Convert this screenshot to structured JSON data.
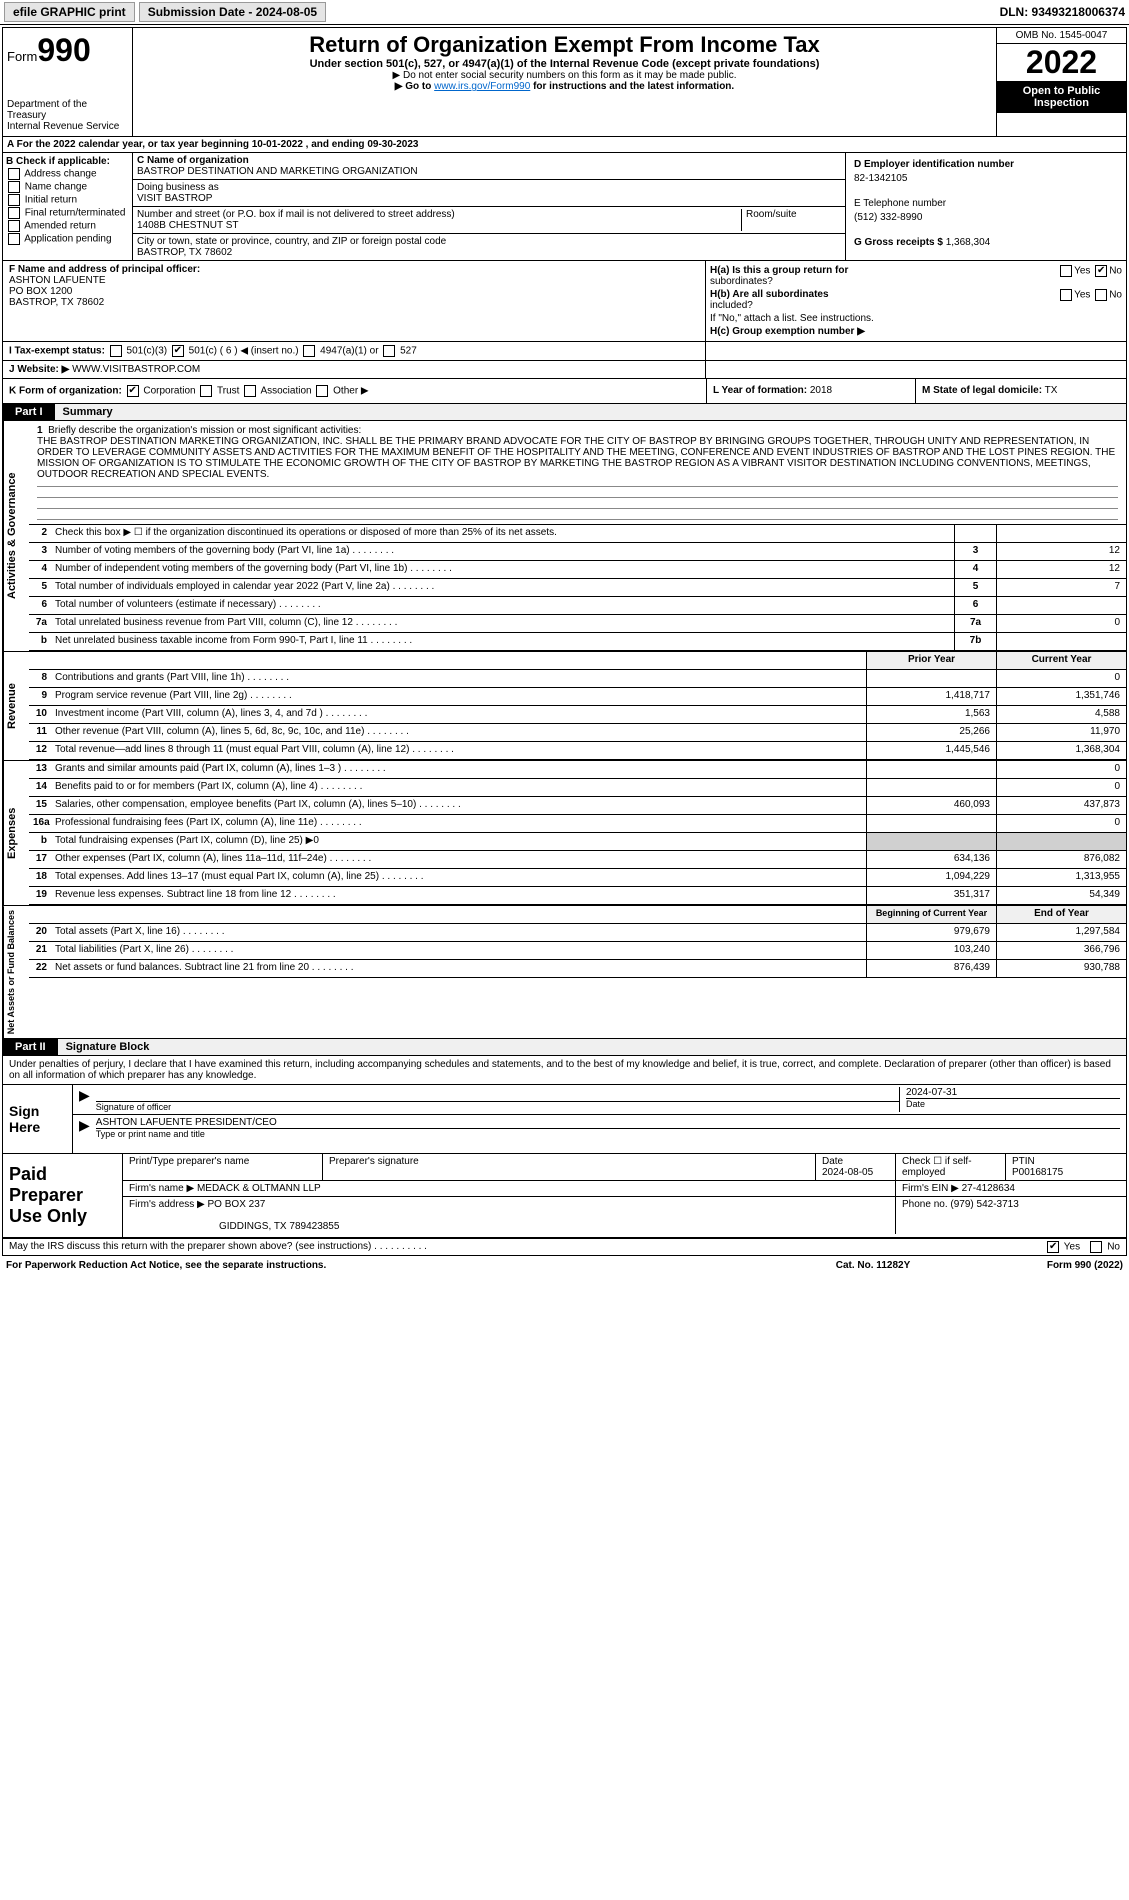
{
  "top": {
    "efile": "efile GRAPHIC print",
    "submission_label": "Submission Date - 2024-08-05",
    "dln": "DLN: 93493218006374"
  },
  "header": {
    "form_prefix": "Form",
    "form_num": "990",
    "dept": "Department of the Treasury",
    "irs": "Internal Revenue Service",
    "title": "Return of Organization Exempt From Income Tax",
    "sub1": "Under section 501(c), 527, or 4947(a)(1) of the Internal Revenue Code (except private foundations)",
    "sub2": "▶ Do not enter social security numbers on this form as it may be made public.",
    "sub3_pre": "▶ Go to ",
    "sub3_link": "www.irs.gov/Form990",
    "sub3_post": " for instructions and the latest information.",
    "omb": "OMB No. 1545-0047",
    "year": "2022",
    "inspect": "Open to Public Inspection"
  },
  "row_a": "A For the 2022 calendar year, or tax year beginning 10-01-2022  , and ending 09-30-2023",
  "col_b": {
    "hdr": "B Check if applicable:",
    "c1": "Address change",
    "c2": "Name change",
    "c3": "Initial return",
    "c4": "Final return/terminated",
    "c5": "Amended return",
    "c6": "Application pending"
  },
  "col_c": {
    "name_lbl": "C Name of organization",
    "name": "BASTROP DESTINATION AND MARKETING ORGANIZATION",
    "dba_lbl": "Doing business as",
    "dba": "VISIT BASTROP",
    "street_lbl": "Number and street (or P.O. box if mail is not delivered to street address)",
    "street": "1408B CHESTNUT ST",
    "room_lbl": "Room/suite",
    "city_lbl": "City or town, state or province, country, and ZIP or foreign postal code",
    "city": "BASTROP, TX  78602"
  },
  "col_d": {
    "ein_lbl": "D Employer identification number",
    "ein": "82-1342105",
    "phone_lbl": "E Telephone number",
    "phone": "(512) 332-8990",
    "gross_lbl": "G Gross receipts $",
    "gross": "1,368,304"
  },
  "col_f": {
    "lbl": "F  Name and address of principal officer:",
    "name": "ASHTON LAFUENTE",
    "addr1": "PO BOX 1200",
    "addr2": "BASTROP, TX  78602"
  },
  "col_h": {
    "h1a": "H(a)  Is this a group return for",
    "h1b": "subordinates?",
    "yes": "Yes",
    "no": "No",
    "h2a": "H(b)  Are all subordinates",
    "h2b": "included?",
    "h3": "If \"No,\" attach a list. See instructions.",
    "hc": "H(c)  Group exemption number ▶"
  },
  "row_i": {
    "lbl": "I  Tax-exempt status:",
    "c1": "501(c)(3)",
    "c2a": "501(c) ( 6 ) ◀ (insert no.)",
    "c3": "4947(a)(1) or",
    "c4": "527"
  },
  "row_j": {
    "lbl": "J  Website: ▶",
    "val": "WWW.VISITBASTROP.COM"
  },
  "row_k": {
    "lbl": "K Form of organization:",
    "c1": "Corporation",
    "c2": "Trust",
    "c3": "Association",
    "c4": "Other ▶",
    "l_lbl": "L Year of formation:",
    "l_val": "2018",
    "m_lbl": "M State of legal domicile:",
    "m_val": "TX"
  },
  "part1": {
    "num": "Part I",
    "title": "Summary"
  },
  "vside": {
    "gov": "Activities & Governance",
    "rev": "Revenue",
    "exp": "Expenses",
    "net": "Net Assets or Fund Balances"
  },
  "line1": {
    "num": "1",
    "lbl": "Briefly describe the organization's mission or most significant activities:",
    "text": "THE BASTROP DESTINATION MARKETING ORGANIZATION, INC. SHALL BE THE PRIMARY BRAND ADVOCATE FOR THE CITY OF BASTROP BY BRINGING GROUPS TOGETHER, THROUGH UNITY AND REPRESENTATION, IN ORDER TO LEVERAGE COMMUNITY ASSETS AND ACTIVITIES FOR THE MAXIMUM BENEFIT OF THE HOSPITALITY AND THE MEETING, CONFERENCE AND EVENT INDUSTRIES OF BASTROP AND THE LOST PINES REGION. THE MISSION OF ORGANIZATION IS TO STIMULATE THE ECONOMIC GROWTH OF THE CITY OF BASTROP BY MARKETING THE BASTROP REGION AS A VIBRANT VISITOR DESTINATION INCLUDING CONVENTIONS, MEETINGS, OUTDOOR RECREATION AND SPECIAL EVENTS."
  },
  "lines_gov": [
    {
      "n": "2",
      "l": "Check this box ▶ ☐  if the organization discontinued its operations or disposed of more than 25% of its net assets.",
      "b": "",
      "v": ""
    },
    {
      "n": "3",
      "l": "Number of voting members of the governing body (Part VI, line 1a)",
      "b": "3",
      "v": "12"
    },
    {
      "n": "4",
      "l": "Number of independent voting members of the governing body (Part VI, line 1b)",
      "b": "4",
      "v": "12"
    },
    {
      "n": "5",
      "l": "Total number of individuals employed in calendar year 2022 (Part V, line 2a)",
      "b": "5",
      "v": "7"
    },
    {
      "n": "6",
      "l": "Total number of volunteers (estimate if necessary)",
      "b": "6",
      "v": ""
    },
    {
      "n": "7a",
      "l": "Total unrelated business revenue from Part VIII, column (C), line 12",
      "b": "7a",
      "v": "0"
    },
    {
      "n": "b",
      "l": "Net unrelated business taxable income from Form 990-T, Part I, line 11",
      "b": "7b",
      "v": ""
    }
  ],
  "col_headers": {
    "prior": "Prior Year",
    "current": "Current Year"
  },
  "lines_rev": [
    {
      "n": "8",
      "l": "Contributions and grants (Part VIII, line 1h)",
      "p": "",
      "c": "0"
    },
    {
      "n": "9",
      "l": "Program service revenue (Part VIII, line 2g)",
      "p": "1,418,717",
      "c": "1,351,746"
    },
    {
      "n": "10",
      "l": "Investment income (Part VIII, column (A), lines 3, 4, and 7d )",
      "p": "1,563",
      "c": "4,588"
    },
    {
      "n": "11",
      "l": "Other revenue (Part VIII, column (A), lines 5, 6d, 8c, 9c, 10c, and 11e)",
      "p": "25,266",
      "c": "11,970"
    },
    {
      "n": "12",
      "l": "Total revenue—add lines 8 through 11 (must equal Part VIII, column (A), line 12)",
      "p": "1,445,546",
      "c": "1,368,304"
    }
  ],
  "lines_exp": [
    {
      "n": "13",
      "l": "Grants and similar amounts paid (Part IX, column (A), lines 1–3 )",
      "p": "",
      "c": "0"
    },
    {
      "n": "14",
      "l": "Benefits paid to or for members (Part IX, column (A), line 4)",
      "p": "",
      "c": "0"
    },
    {
      "n": "15",
      "l": "Salaries, other compensation, employee benefits (Part IX, column (A), lines 5–10)",
      "p": "460,093",
      "c": "437,873"
    },
    {
      "n": "16a",
      "l": "Professional fundraising fees (Part IX, column (A), line 11e)",
      "p": "",
      "c": "0"
    },
    {
      "n": "b",
      "l": "Total fundraising expenses (Part IX, column (D), line 25) ▶0",
      "p": "gray",
      "c": "gray"
    },
    {
      "n": "17",
      "l": "Other expenses (Part IX, column (A), lines 11a–11d, 11f–24e)",
      "p": "634,136",
      "c": "876,082"
    },
    {
      "n": "18",
      "l": "Total expenses. Add lines 13–17 (must equal Part IX, column (A), line 25)",
      "p": "1,094,229",
      "c": "1,313,955"
    },
    {
      "n": "19",
      "l": "Revenue less expenses. Subtract line 18 from line 12",
      "p": "351,317",
      "c": "54,349"
    }
  ],
  "col_headers2": {
    "begin": "Beginning of Current Year",
    "end": "End of Year"
  },
  "lines_net": [
    {
      "n": "20",
      "l": "Total assets (Part X, line 16)",
      "p": "979,679",
      "c": "1,297,584"
    },
    {
      "n": "21",
      "l": "Total liabilities (Part X, line 26)",
      "p": "103,240",
      "c": "366,796"
    },
    {
      "n": "22",
      "l": "Net assets or fund balances. Subtract line 21 from line 20",
      "p": "876,439",
      "c": "930,788"
    }
  ],
  "part2": {
    "num": "Part II",
    "title": "Signature Block"
  },
  "penalty": "Under penalties of perjury, I declare that I have examined this return, including accompanying schedules and statements, and to the best of my knowledge and belief, it is true, correct, and complete. Declaration of preparer (other than officer) is based on all information of which preparer has any knowledge.",
  "sign": {
    "lbl": "Sign Here",
    "sig_lbl": "Signature of officer",
    "date_lbl": "Date",
    "date": "2024-07-31",
    "name": "ASHTON LAFUENTE  PRESIDENT/CEO",
    "name_lbl": "Type or print name and title"
  },
  "paid": {
    "lbl": "Paid Preparer Use Only",
    "prep_name_lbl": "Print/Type preparer's name",
    "prep_sig_lbl": "Preparer's signature",
    "date_lbl": "Date",
    "date": "2024-08-05",
    "check_lbl": "Check ☐ if self-employed",
    "ptin_lbl": "PTIN",
    "ptin": "P00168175",
    "firm_name_lbl": "Firm's name    ▶",
    "firm_name": "MEDACK & OLTMANN LLP",
    "firm_ein_lbl": "Firm's EIN ▶",
    "firm_ein": "27-4128634",
    "firm_addr_lbl": "Firm's address ▶",
    "firm_addr1": "PO BOX 237",
    "firm_addr2": "GIDDINGS, TX  789423855",
    "phone_lbl": "Phone no.",
    "phone": "(979) 542-3713"
  },
  "footer": {
    "discuss": "May the IRS discuss this return with the preparer shown above? (see instructions)",
    "yes": "Yes",
    "no": "No",
    "paperwork": "For Paperwork Reduction Act Notice, see the separate instructions.",
    "cat": "Cat. No. 11282Y",
    "form": "Form 990 (2022)"
  }
}
